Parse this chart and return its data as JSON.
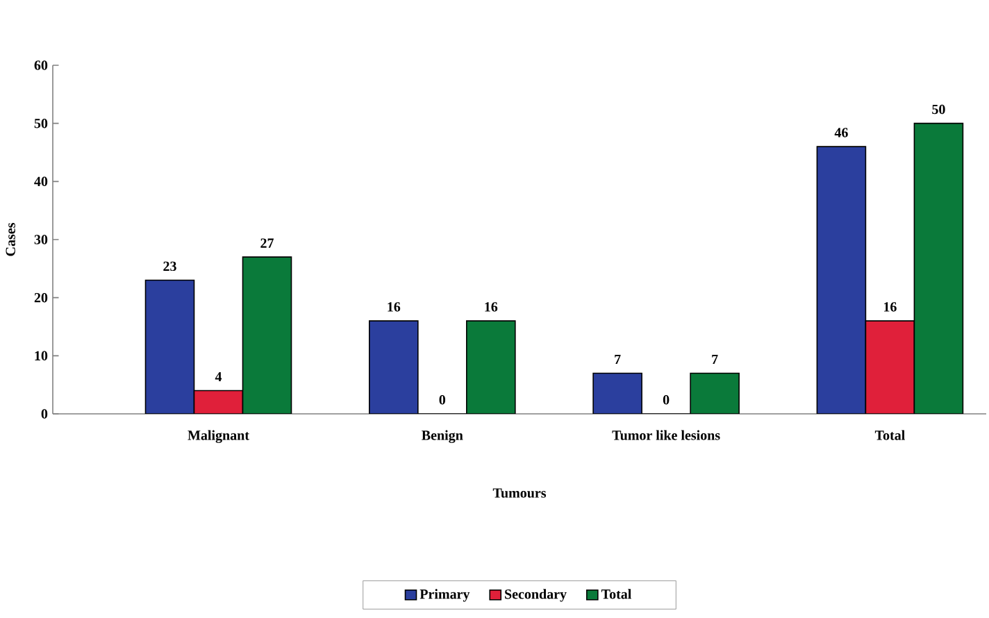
{
  "chart_data": {
    "type": "bar",
    "xlabel": "Tumours",
    "ylabel": "Cases",
    "categories": [
      "Malignant",
      "Benign",
      "Tumor like lesions",
      "Total"
    ],
    "series": [
      {
        "name": "Primary",
        "color": "#2b3f9e",
        "values": [
          23,
          16,
          7,
          46
        ]
      },
      {
        "name": "Secondary",
        "color": "#e0203a",
        "values": [
          4,
          0,
          0,
          16
        ]
      },
      {
        "name": "Total",
        "color": "#0a7a3a",
        "values": [
          27,
          16,
          7,
          50
        ]
      }
    ],
    "ylim": [
      0,
      60
    ],
    "yticks": [
      0,
      10,
      20,
      30,
      40,
      50,
      60
    ],
    "data_labels": true,
    "legend": "bottom",
    "grid": false
  }
}
